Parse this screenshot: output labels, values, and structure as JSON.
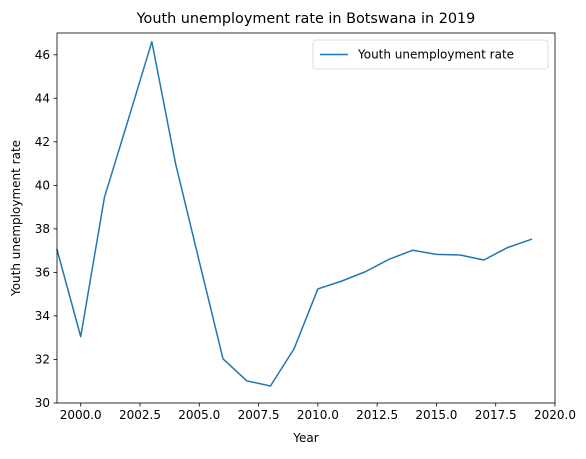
{
  "chart_data": {
    "type": "line",
    "title": "Youth unemployment rate in Botswana in 2019",
    "xlabel": "Year",
    "ylabel": "Youth unemployment rate",
    "xlim": [
      1999.0,
      2020.0
    ],
    "ylim": [
      30.0,
      47.0
    ],
    "xticks": [
      2000.0,
      2002.5,
      2005.0,
      2007.5,
      2010.0,
      2012.5,
      2015.0,
      2017.5,
      2020.0
    ],
    "xtick_labels": [
      "2000.0",
      "2002.5",
      "2005.0",
      "2007.5",
      "2010.0",
      "2012.5",
      "2015.0",
      "2017.5",
      "2020.0"
    ],
    "yticks": [
      30,
      32,
      34,
      36,
      38,
      40,
      42,
      44,
      46
    ],
    "ytick_labels": [
      "30",
      "32",
      "34",
      "36",
      "38",
      "40",
      "42",
      "44",
      "46"
    ],
    "grid": false,
    "legend": {
      "position": "upper right",
      "entries": [
        "Youth unemployment rate"
      ]
    },
    "series": [
      {
        "name": "Youth unemployment rate",
        "color": "#1f77b4",
        "x": [
          1999,
          2000,
          2001,
          2002,
          2003,
          2004,
          2005,
          2006,
          2007,
          2008,
          2009,
          2010,
          2011,
          2012,
          2013,
          2014,
          2015,
          2016,
          2017,
          2018,
          2019
        ],
        "y": [
          37.05,
          33.05,
          39.45,
          43.0,
          46.6,
          41.0,
          36.5,
          32.03,
          31.02,
          30.78,
          32.5,
          35.24,
          35.6,
          36.03,
          36.6,
          37.02,
          36.83,
          36.8,
          36.57,
          37.14,
          37.52
        ]
      }
    ]
  }
}
